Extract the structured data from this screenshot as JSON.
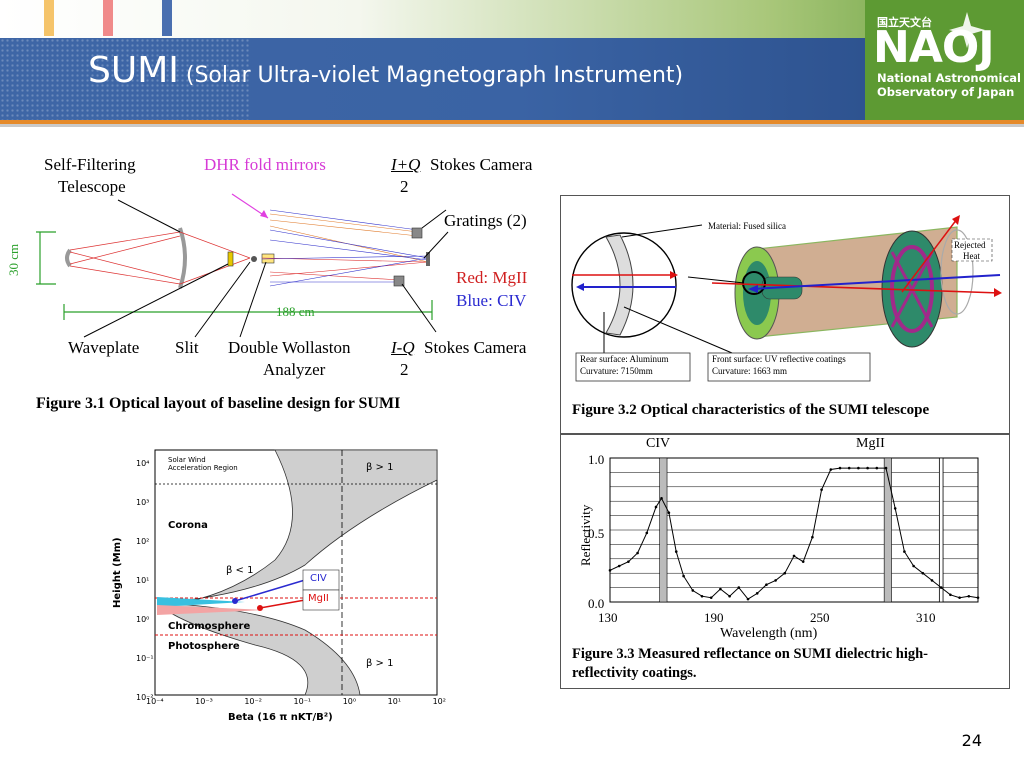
{
  "header": {
    "title_main": "SUMI",
    "title_sub": " (Solar Ultra-violet Magnetograph Instrument)",
    "colors": {
      "banner": "#3e66a6",
      "accent_orange": "#e58a2a",
      "logo_green": "#5d9a33"
    }
  },
  "logo": {
    "japanese": "国立天文台",
    "abbr": "NAOJ",
    "line1": "National Astronomical",
    "line2": "Observatory of Japan"
  },
  "fig31": {
    "self_filtering": "Self-Filtering",
    "telescope": "Telescope",
    "dhr": "DHR fold mirrors",
    "stokes_top_frac": "I+Q",
    "stokes_top_den": "2",
    "stokes_camera_top": "Stokes Camera",
    "gratings": "Gratings (2)",
    "red": "Red: MgII",
    "blue": "Blue: CIV",
    "dim_vertical": "30 cm",
    "dim_horizontal": "188 cm",
    "waveplate": "Waveplate",
    "slit": "Slit",
    "double_wollaston": "Double Wollaston",
    "analyzer": "Analyzer",
    "stokes_bot_frac": "I-Q",
    "stokes_bot_den": "2",
    "stokes_camera_bot": "Stokes Camera",
    "caption": "Figure 3.1 Optical layout of baseline design for SUMI"
  },
  "fig32": {
    "material": "Material:  Fused silica",
    "rejected": "Rejected",
    "heat": "Heat",
    "rear1": "Rear surface:  Aluminum",
    "rear2": "Curvature:  7150mm",
    "front1": "Front surface:  UV reflective coatings",
    "front2": "Curvature:  1663 mm",
    "caption": "Figure  3.2  Optical characteristics of the SUMI telescope"
  },
  "fig33": {
    "line_civ": "CIV",
    "line_mgii": "MgII",
    "ylabel": "Reflectivity",
    "xlabel": "Wavelength (nm)",
    "yticks": [
      "1.0",
      "0.5",
      "0.0"
    ],
    "xticks": [
      "130",
      "190",
      "250",
      "310"
    ],
    "caption1": "Figure 3.3 Measured reflectance on SUMI dielectric high-",
    "caption2": "reflectivity coatings."
  },
  "fig34": {
    "solar_wind": "Solar Wind",
    "accel": "Acceleration Region",
    "corona": "Corona",
    "chromosphere": "Chromosphere",
    "photosphere": "Photosphere",
    "beta_gt1_top": "β > 1",
    "beta_lt1": "β < 1",
    "beta_gt1_bot": "β > 1",
    "civ": "CIV",
    "mgii": "MgII",
    "ylabel": "Height (Mm)",
    "xlabel": "Beta (16 π nKT/B²)",
    "yticks": [
      "10⁴",
      "10³",
      "10²",
      "10¹",
      "10⁰",
      "10⁻¹",
      "10⁻²"
    ],
    "xticks": [
      "10⁻⁴",
      "10⁻³",
      "10⁻²",
      "10⁻¹",
      "10⁰",
      "10¹",
      "10²"
    ]
  },
  "chart_data": {
    "type": "line",
    "title": "",
    "xlabel": "Wavelength (nm)",
    "ylabel": "Reflectivity",
    "xlim": [
      130,
      330
    ],
    "ylim": [
      0,
      1.0
    ],
    "x": [
      130,
      135,
      140,
      145,
      150,
      155,
      158,
      162,
      166,
      170,
      175,
      180,
      185,
      190,
      195,
      200,
      205,
      210,
      215,
      220,
      225,
      230,
      235,
      240,
      245,
      250,
      255,
      260,
      265,
      270,
      275,
      280,
      285,
      290,
      295,
      300,
      305,
      310,
      315,
      320,
      325,
      330
    ],
    "series": [
      {
        "name": "reflectance",
        "values": [
          0.22,
          0.25,
          0.28,
          0.34,
          0.48,
          0.66,
          0.72,
          0.62,
          0.35,
          0.18,
          0.08,
          0.04,
          0.03,
          0.09,
          0.04,
          0.1,
          0.02,
          0.06,
          0.12,
          0.15,
          0.2,
          0.32,
          0.28,
          0.45,
          0.78,
          0.92,
          0.93,
          0.93,
          0.93,
          0.93,
          0.93,
          0.93,
          0.65,
          0.35,
          0.25,
          0.2,
          0.15,
          0.1,
          0.05,
          0.03,
          0.04,
          0.03
        ]
      }
    ]
  }
}
